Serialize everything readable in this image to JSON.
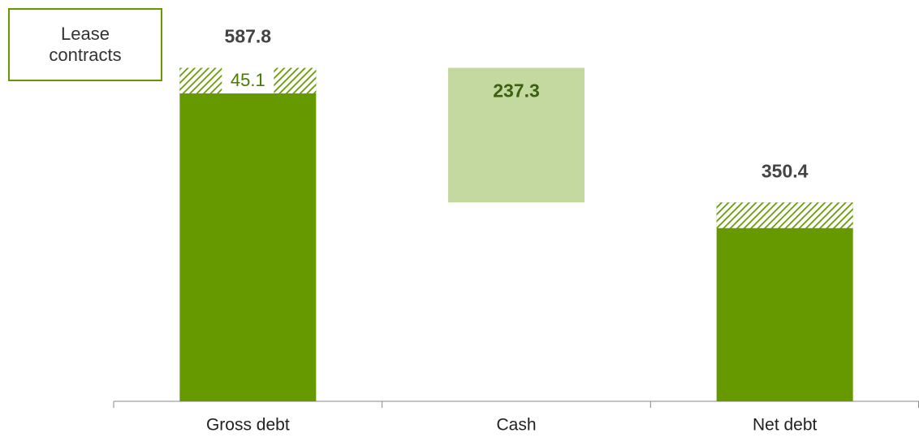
{
  "chart_data": {
    "type": "waterfall",
    "categories": [
      "Gross debt",
      "Cash",
      "Net debt"
    ],
    "values": [
      587.8,
      237.3,
      350.4
    ],
    "measure": [
      "total",
      "decrease",
      "total"
    ],
    "colors": {
      "total": "#669900",
      "decrease": "#c4d9a0"
    },
    "series": [
      {
        "name": "Lease contracts",
        "color": "#669900",
        "values": [
          45.1,
          null,
          45.1
        ],
        "value_labels": [
          "45.1",
          null,
          null
        ]
      }
    ],
    "ylim": [
      0,
      600
    ]
  }
}
